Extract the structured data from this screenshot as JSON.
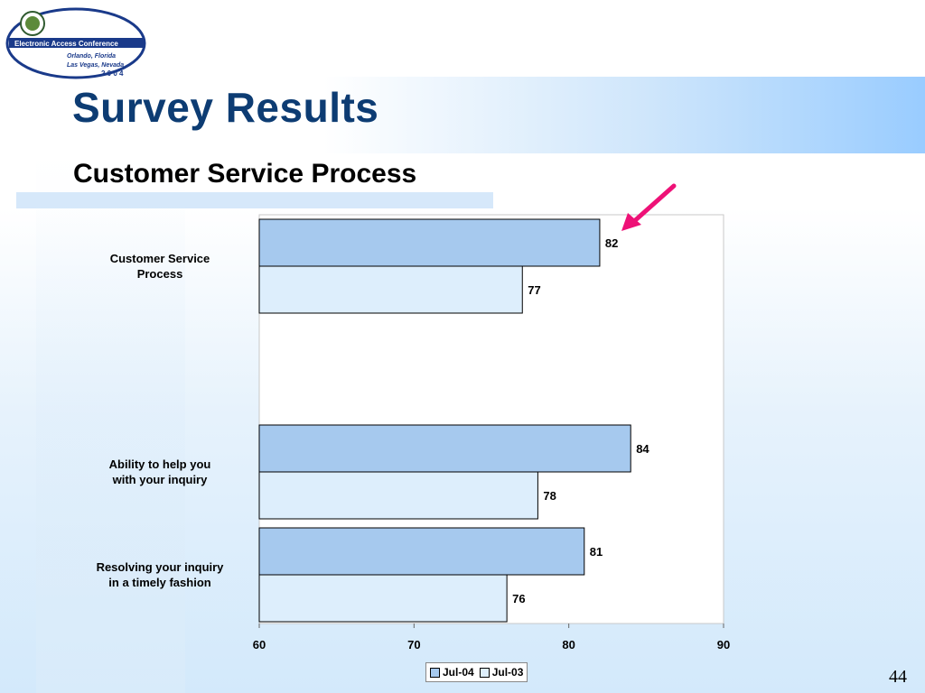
{
  "slide": {
    "title": "Survey Results",
    "subtitle": "Customer Service Process",
    "page_number": "44"
  },
  "logo": {
    "line1": "Electronic Access Conference",
    "line2": "Orlando, Florida",
    "line3": "Las Vegas, Nevada",
    "line4": "2 0 0 4"
  },
  "colors": {
    "title": "#0d3c73",
    "jul04": "#a6c9ee",
    "jul03": "#ddeefc",
    "arrow": "#ee1177"
  },
  "chart_data": {
    "type": "bar",
    "orientation": "horizontal",
    "categories": [
      "Customer Service\nProcess",
      "Ability to help you\nwith your inquiry",
      "Resolving your inquiry\nin a timely fashion"
    ],
    "series": [
      {
        "name": "Jul-04",
        "values": [
          82,
          84,
          81
        ]
      },
      {
        "name": "Jul-03",
        "values": [
          77,
          78,
          76
        ]
      }
    ],
    "xlim": [
      60,
      90
    ],
    "xticks": [
      60,
      70,
      80,
      90
    ],
    "grid": false,
    "legend": "bottom",
    "annotation": "arrow pointing at 82"
  }
}
